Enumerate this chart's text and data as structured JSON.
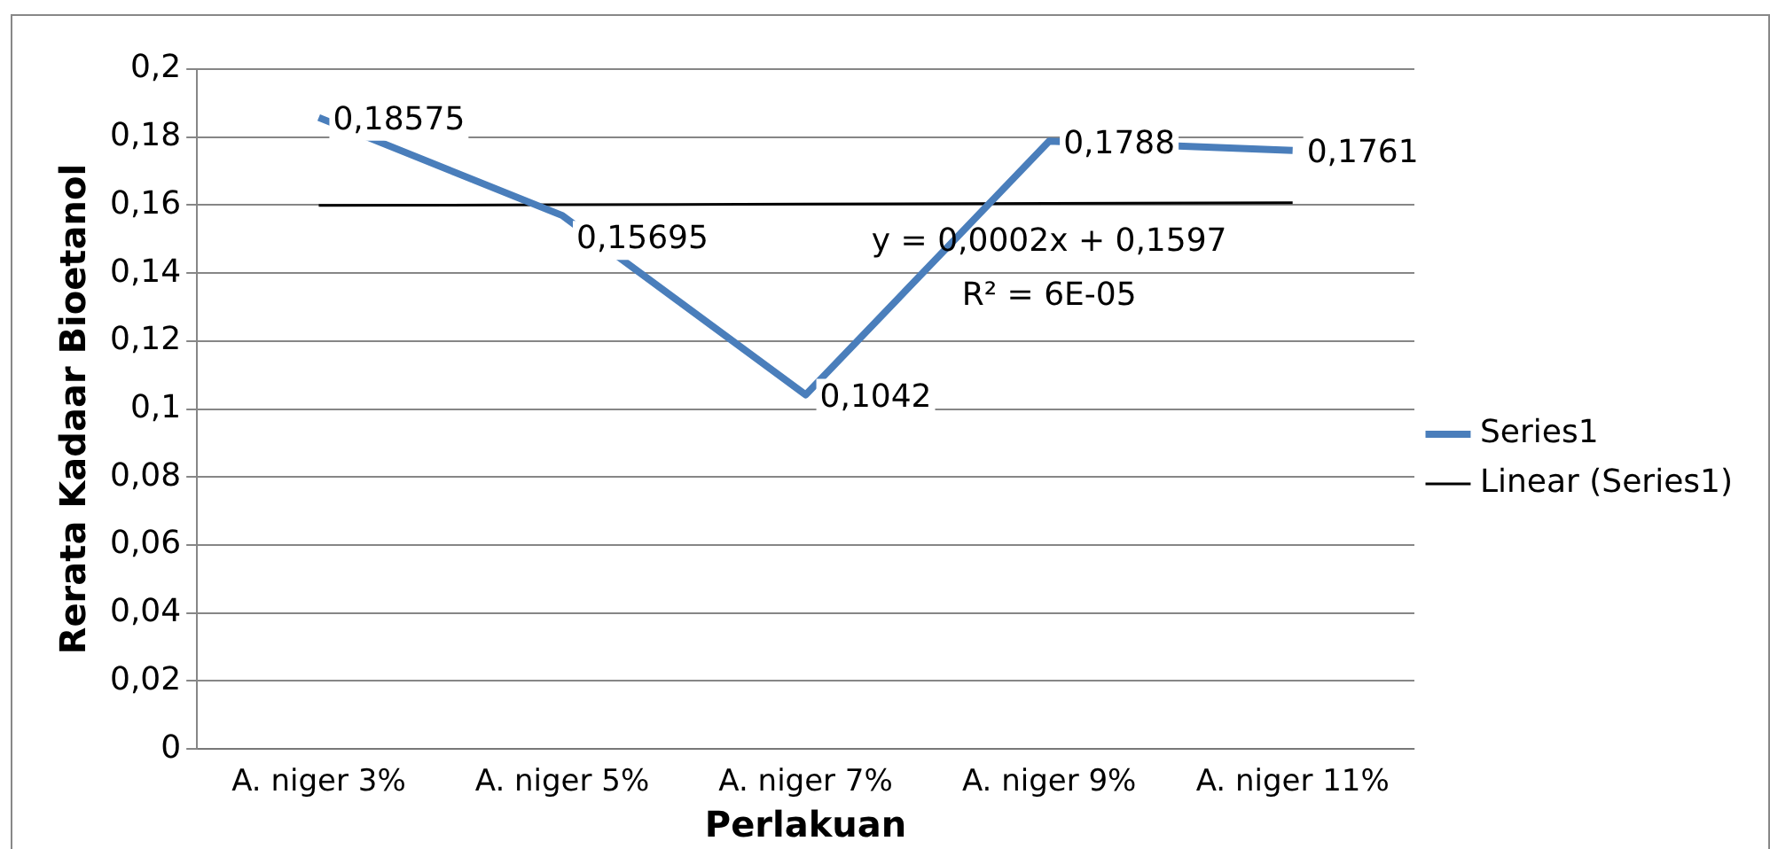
{
  "chart_data": {
    "type": "line",
    "xlabel": "Perlakuan",
    "ylabel": "Rerata Kadaar Bioetanol",
    "categories": [
      "A. niger 3%",
      "A. niger 5%",
      "A. niger 7%",
      "A. niger 9%",
      "A. niger 11%"
    ],
    "series": [
      {
        "name": "Series1",
        "color": "#4a7ebb",
        "values": [
          0.18575,
          0.15695,
          0.1042,
          0.1788,
          0.1761
        ],
        "value_labels": [
          "0,18575",
          "0,15695",
          "0,1042",
          "0,1788",
          "0,1761"
        ]
      },
      {
        "name": "Linear (Series1)",
        "color": "#000000",
        "values": [
          0.1599,
          0.1601,
          0.1603,
          0.1605,
          0.1607
        ]
      }
    ],
    "ylim": [
      0,
      0.2
    ],
    "yticks": [
      {
        "value": 0,
        "label": "0"
      },
      {
        "value": 0.02,
        "label": "0,02"
      },
      {
        "value": 0.04,
        "label": "0,04"
      },
      {
        "value": 0.06,
        "label": "0,06"
      },
      {
        "value": 0.08,
        "label": "0,08"
      },
      {
        "value": 0.1,
        "label": "0,1"
      },
      {
        "value": 0.12,
        "label": "0,12"
      },
      {
        "value": 0.14,
        "label": "0,14"
      },
      {
        "value": 0.16,
        "label": "0,16"
      },
      {
        "value": 0.18,
        "label": "0,18"
      },
      {
        "value": 0.2,
        "label": "0,2"
      }
    ],
    "annotations": [
      "y = 0,0002x + 0,1597",
      "R² = 6E-05"
    ],
    "grid": "y",
    "legend": "right",
    "marker": "none",
    "line_style": "solid"
  }
}
